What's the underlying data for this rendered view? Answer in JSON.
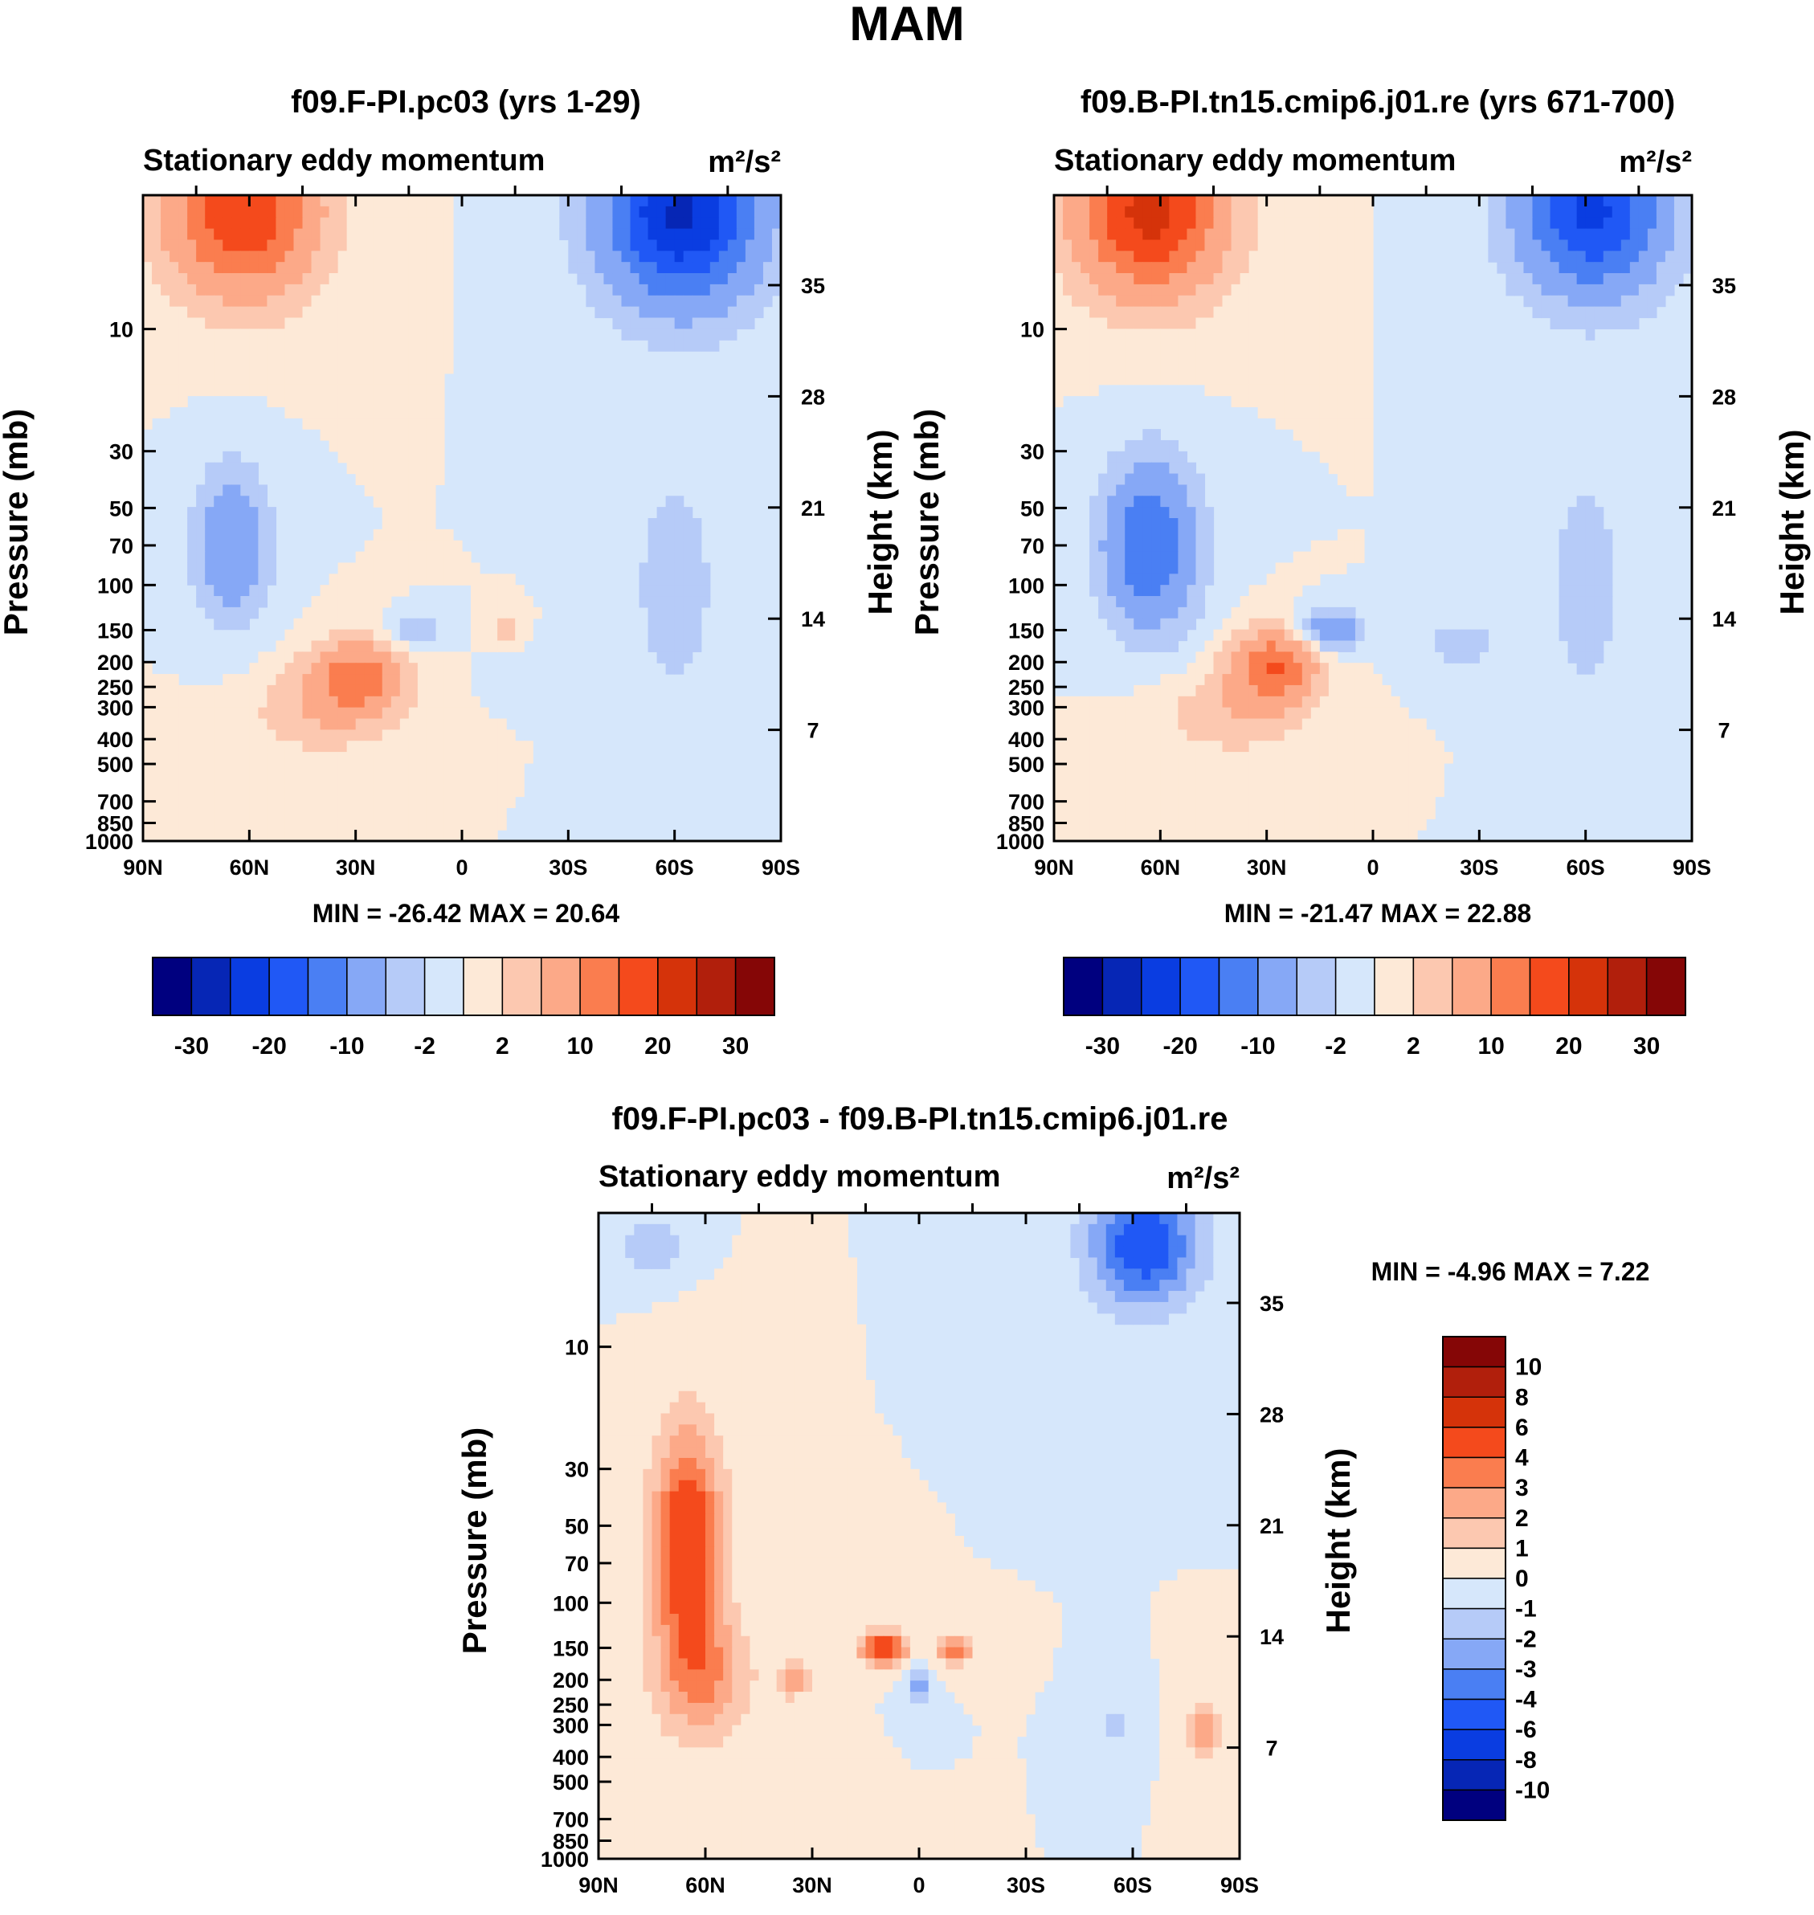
{
  "title": "MAM",
  "panels": [
    {
      "title": "f09.F-PI.pc03 (yrs 1-29)",
      "left_label": "Stationary eddy momentum",
      "units_label": "m²/s²",
      "ylabel": "Pressure (mb)",
      "ylabel_right": "Height (km)",
      "stats": "MIN = -26.42  MAX =  20.64"
    },
    {
      "title": "f09.B-PI.tn15.cmip6.j01.re (yrs 671-700)",
      "left_label": "Stationary eddy momentum",
      "units_label": "m²/s²",
      "ylabel": "Pressure (mb)",
      "ylabel_right": "Height (km)",
      "stats": "MIN = -21.47  MAX =  22.88"
    },
    {
      "title": "f09.F-PI.pc03 - f09.B-PI.tn15.cmip6.j01.re",
      "left_label": "Stationary eddy momentum",
      "units_label": "m²/s²",
      "ylabel": "Pressure (mb)",
      "ylabel_right": "Height (km)",
      "stats": "MIN =  -4.96  MAX =   7.22"
    }
  ],
  "chart_data": [
    {
      "type": "heatmap",
      "title": "f09.F-PI.pc03 (yrs 1-29)",
      "field": "Stationary eddy momentum",
      "units": "m2/s2",
      "x_ticks": [
        "90N",
        "60N",
        "30N",
        "0",
        "30S",
        "60S",
        "90S"
      ],
      "xlim": [
        90,
        -90
      ],
      "y_ticks": [
        10,
        30,
        50,
        70,
        100,
        150,
        200,
        250,
        300,
        400,
        500,
        700,
        850,
        1000
      ],
      "ylim": [
        1000,
        3
      ],
      "y_right_ticks": [
        7,
        14,
        21,
        28,
        35
      ],
      "ylabel": "Pressure (mb)",
      "ylabel_right": "Height (km)",
      "min": -26.42,
      "max": 20.64,
      "contour_levels": [
        -30,
        -25,
        -20,
        -15,
        -10,
        -5,
        -2,
        0,
        2,
        5,
        10,
        15,
        20,
        25,
        30
      ],
      "colorbar_labels": [
        "-30",
        "-20",
        "-10",
        "-2",
        "2",
        "10",
        "20",
        "30"
      ],
      "features": [
        {
          "lat": 62,
          "p": 3.5,
          "value": 20,
          "lat_width": 14,
          "logp_width": 0.5
        },
        {
          "lat": 65,
          "p": 70,
          "value": -10,
          "lat_width": 7,
          "logp_width": 0.45
        },
        {
          "lat": 30,
          "p": 230,
          "value": 13,
          "lat_width": 9,
          "logp_width": 0.22
        },
        {
          "lat": 40,
          "p": 320,
          "value": 4,
          "lat_width": 14,
          "logp_width": 0.25
        },
        {
          "lat": -62,
          "p": 3.5,
          "value": -26,
          "lat_width": 15,
          "logp_width": 0.55
        },
        {
          "lat": -60,
          "p": 100,
          "value": -3,
          "lat_width": 10,
          "logp_width": 0.9
        },
        {
          "lat": 13,
          "p": 150,
          "value": -4,
          "lat_width": 5,
          "logp_width": 0.1
        },
        {
          "lat": -12,
          "p": 150,
          "value": 3,
          "lat_width": 3,
          "logp_width": 0.1
        },
        {
          "lat": -25,
          "p": 220,
          "value": -2,
          "lat_width": 8,
          "logp_width": 0.15
        }
      ]
    },
    {
      "type": "heatmap",
      "title": "f09.B-PI.tn15.cmip6.j01.re (yrs 671-700)",
      "field": "Stationary eddy momentum",
      "units": "m2/s2",
      "x_ticks": [
        "90N",
        "60N",
        "30N",
        "0",
        "30S",
        "60S",
        "90S"
      ],
      "xlim": [
        90,
        -90
      ],
      "y_ticks": [
        10,
        30,
        50,
        70,
        100,
        150,
        200,
        250,
        300,
        400,
        500,
        700,
        850,
        1000
      ],
      "ylim": [
        1000,
        3
      ],
      "y_right_ticks": [
        7,
        14,
        21,
        28,
        35
      ],
      "ylabel": "Pressure (mb)",
      "ylabel_right": "Height (km)",
      "min": -21.47,
      "max": 22.88,
      "contour_levels": [
        -30,
        -25,
        -20,
        -15,
        -10,
        -5,
        -2,
        0,
        2,
        5,
        10,
        15,
        20,
        25,
        30
      ],
      "colorbar_labels": [
        "-30",
        "-20",
        "-10",
        "-2",
        "2",
        "10",
        "20",
        "30"
      ],
      "features": [
        {
          "lat": 63,
          "p": 3.5,
          "value": 22,
          "lat_width": 14,
          "logp_width": 0.5
        },
        {
          "lat": 63,
          "p": 70,
          "value": -15,
          "lat_width": 9,
          "logp_width": 0.5
        },
        {
          "lat": 28,
          "p": 210,
          "value": 15,
          "lat_width": 8,
          "logp_width": 0.22
        },
        {
          "lat": 40,
          "p": 320,
          "value": 4,
          "lat_width": 14,
          "logp_width": 0.25
        },
        {
          "lat": -62,
          "p": 3.5,
          "value": -21,
          "lat_width": 14,
          "logp_width": 0.5
        },
        {
          "lat": -60,
          "p": 100,
          "value": -3,
          "lat_width": 9,
          "logp_width": 0.9
        },
        {
          "lat": 12,
          "p": 150,
          "value": -9,
          "lat_width": 6,
          "logp_width": 0.12
        },
        {
          "lat": -25,
          "p": 170,
          "value": -3,
          "lat_width": 8,
          "logp_width": 0.2
        }
      ]
    },
    {
      "type": "heatmap",
      "title": "f09.F-PI.pc03 - f09.B-PI.tn15.cmip6.j01.re",
      "field": "Stationary eddy momentum",
      "units": "m2/s2",
      "x_ticks": [
        "90N",
        "60N",
        "30N",
        "0",
        "30S",
        "60S",
        "90S"
      ],
      "xlim": [
        90,
        -90
      ],
      "y_ticks": [
        10,
        30,
        50,
        70,
        100,
        150,
        200,
        250,
        300,
        400,
        500,
        700,
        850,
        1000
      ],
      "ylim": [
        1000,
        3
      ],
      "y_right_ticks": [
        7,
        14,
        21,
        28,
        35
      ],
      "ylabel": "Pressure (mb)",
      "ylabel_right": "Height (km)",
      "min": -4.96,
      "max": 7.22,
      "contour_levels": [
        -10,
        -8,
        -6,
        -4,
        -3,
        -2,
        -1,
        0,
        1,
        2,
        3,
        4,
        6,
        8,
        10
      ],
      "colorbar_labels": [
        "10",
        "8",
        "6",
        "4",
        "3",
        "2",
        "1",
        "0",
        "-1",
        "-2",
        "-3",
        "-4",
        "-6",
        "-8",
        "-10"
      ],
      "features": [
        {
          "lat": 65,
          "p": 60,
          "value": 5.5,
          "lat_width": 7,
          "logp_width": 0.75
        },
        {
          "lat": 60,
          "p": 200,
          "value": 2.5,
          "lat_width": 10,
          "logp_width": 0.4
        },
        {
          "lat": 10,
          "p": 150,
          "value": 6,
          "lat_width": 4.5,
          "logp_width": 0.1
        },
        {
          "lat": -10,
          "p": 150,
          "value": 3.5,
          "lat_width": 4,
          "logp_width": 0.1
        },
        {
          "lat": 35,
          "p": 200,
          "value": 3.5,
          "lat_width": 2.5,
          "logp_width": 0.1
        },
        {
          "lat": 0,
          "p": 210,
          "value": -2.5,
          "lat_width": 2.5,
          "logp_width": 0.12
        },
        {
          "lat": -63,
          "p": 4,
          "value": -5,
          "lat_width": 11,
          "logp_width": 0.4
        },
        {
          "lat": 75,
          "p": 4,
          "value": -2,
          "lat_width": 6,
          "logp_width": 0.2
        },
        {
          "lat": -80,
          "p": 320,
          "value": 2.8,
          "lat_width": 3,
          "logp_width": 0.2
        },
        {
          "lat": -55,
          "p": 300,
          "value": -1.5,
          "lat_width": 3,
          "logp_width": 0.15
        }
      ]
    }
  ]
}
